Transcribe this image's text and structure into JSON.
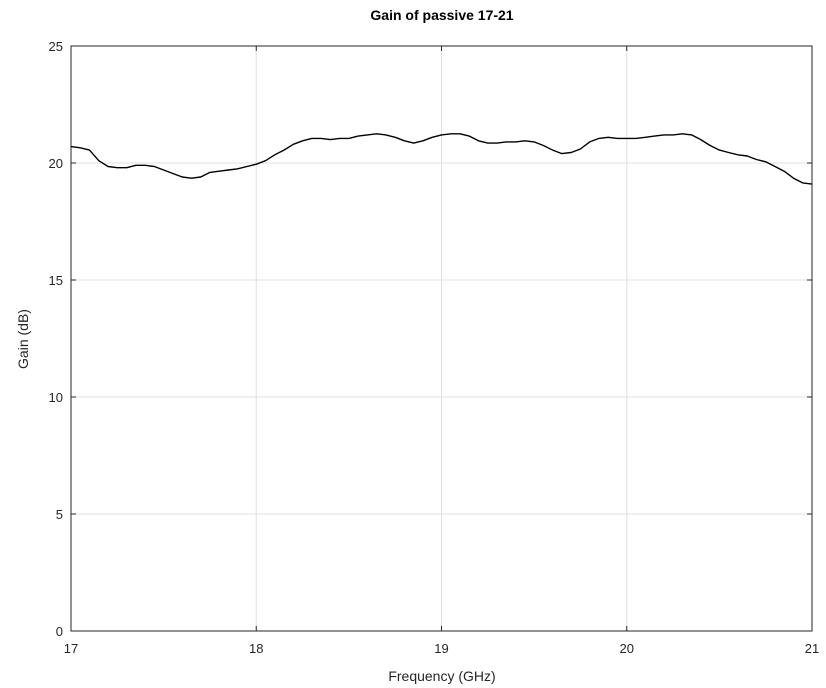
{
  "chart_data": {
    "type": "line",
    "title": "Gain of passive 17-21",
    "xlabel": "Frequency (GHz)",
    "ylabel": "Gain (dB)",
    "xlim": [
      17,
      21
    ],
    "ylim": [
      0,
      25
    ],
    "xticks": [
      17,
      18,
      19,
      20,
      21
    ],
    "yticks": [
      0,
      5,
      10,
      15,
      20,
      25
    ],
    "grid": true,
    "series": [
      {
        "color": "#000000",
        "x": [
          17.0,
          17.05,
          17.1,
          17.15,
          17.2,
          17.25,
          17.3,
          17.35,
          17.4,
          17.45,
          17.5,
          17.55,
          17.6,
          17.65,
          17.7,
          17.75,
          17.8,
          17.85,
          17.9,
          17.95,
          18.0,
          18.05,
          18.1,
          18.15,
          18.2,
          18.25,
          18.3,
          18.35,
          18.4,
          18.45,
          18.5,
          18.55,
          18.6,
          18.65,
          18.7,
          18.75,
          18.8,
          18.85,
          18.9,
          18.95,
          19.0,
          19.05,
          19.1,
          19.15,
          19.2,
          19.25,
          19.3,
          19.35,
          19.4,
          19.45,
          19.5,
          19.55,
          19.6,
          19.65,
          19.7,
          19.75,
          19.8,
          19.85,
          19.9,
          19.95,
          20.0,
          20.05,
          20.1,
          20.15,
          20.2,
          20.25,
          20.3,
          20.35,
          20.4,
          20.45,
          20.5,
          20.55,
          20.6,
          20.65,
          20.7,
          20.75,
          20.8,
          20.85,
          20.9,
          20.95,
          21.0
        ],
        "y": [
          20.7,
          20.65,
          20.55,
          20.1,
          19.85,
          19.8,
          19.8,
          19.9,
          19.9,
          19.85,
          19.7,
          19.55,
          19.4,
          19.35,
          19.4,
          19.6,
          19.65,
          19.7,
          19.75,
          19.85,
          19.95,
          20.1,
          20.35,
          20.55,
          20.8,
          20.95,
          21.05,
          21.05,
          21.0,
          21.05,
          21.05,
          21.15,
          21.2,
          21.25,
          21.2,
          21.1,
          20.95,
          20.85,
          20.95,
          21.1,
          21.2,
          21.25,
          21.25,
          21.15,
          20.95,
          20.85,
          20.85,
          20.9,
          20.9,
          20.95,
          20.9,
          20.75,
          20.55,
          20.4,
          20.45,
          20.6,
          20.9,
          21.05,
          21.1,
          21.05,
          21.05,
          21.05,
          21.1,
          21.15,
          21.2,
          21.2,
          21.25,
          21.2,
          21.0,
          20.75,
          20.55,
          20.45,
          20.35,
          20.3,
          20.15,
          20.05,
          19.85,
          19.65,
          19.35,
          19.15,
          19.1
        ]
      }
    ]
  }
}
